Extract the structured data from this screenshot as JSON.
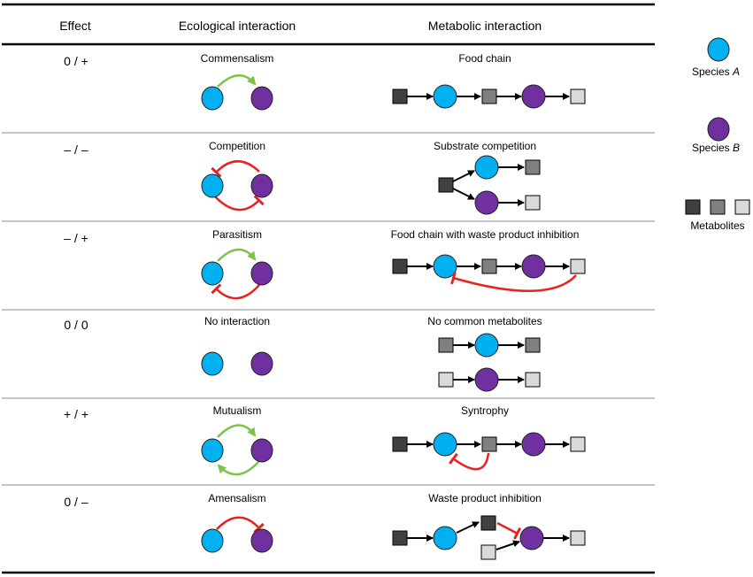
{
  "headers": {
    "effect": "Effect",
    "ecological": "Ecological interaction",
    "metabolic": "Metabolic interaction"
  },
  "rows": [
    {
      "effect": "0 / +",
      "ecological": "Commensalism",
      "metabolic": "Food chain"
    },
    {
      "effect": "– / –",
      "ecological": "Competition",
      "metabolic": "Substrate competition"
    },
    {
      "effect": "– / +",
      "ecological": "Parasitism",
      "metabolic": "Food chain with waste product inhibition"
    },
    {
      "effect": "0 / 0",
      "ecological": "No interaction",
      "metabolic": "No common metabolites"
    },
    {
      "effect": "+ / +",
      "ecological": "Mutualism",
      "metabolic": "Syntrophy"
    },
    {
      "effect": "0 / –",
      "ecological": "Amensalism",
      "metabolic": "Waste product inhibition"
    }
  ],
  "legend": {
    "species_a_prefix": "Species ",
    "species_a_letter": "A",
    "species_b_prefix": "Species ",
    "species_b_letter": "B",
    "metabolites": "Metabolites"
  },
  "colors": {
    "species_a": "#00b0f0",
    "species_b": "#7030a0",
    "metabolite_dark": "#404040",
    "metabolite_mid": "#808080",
    "metabolite_light": "#d9d9d9",
    "positive_arrow": "#7dc24a",
    "inhibition_arrow": "#e8221f"
  }
}
